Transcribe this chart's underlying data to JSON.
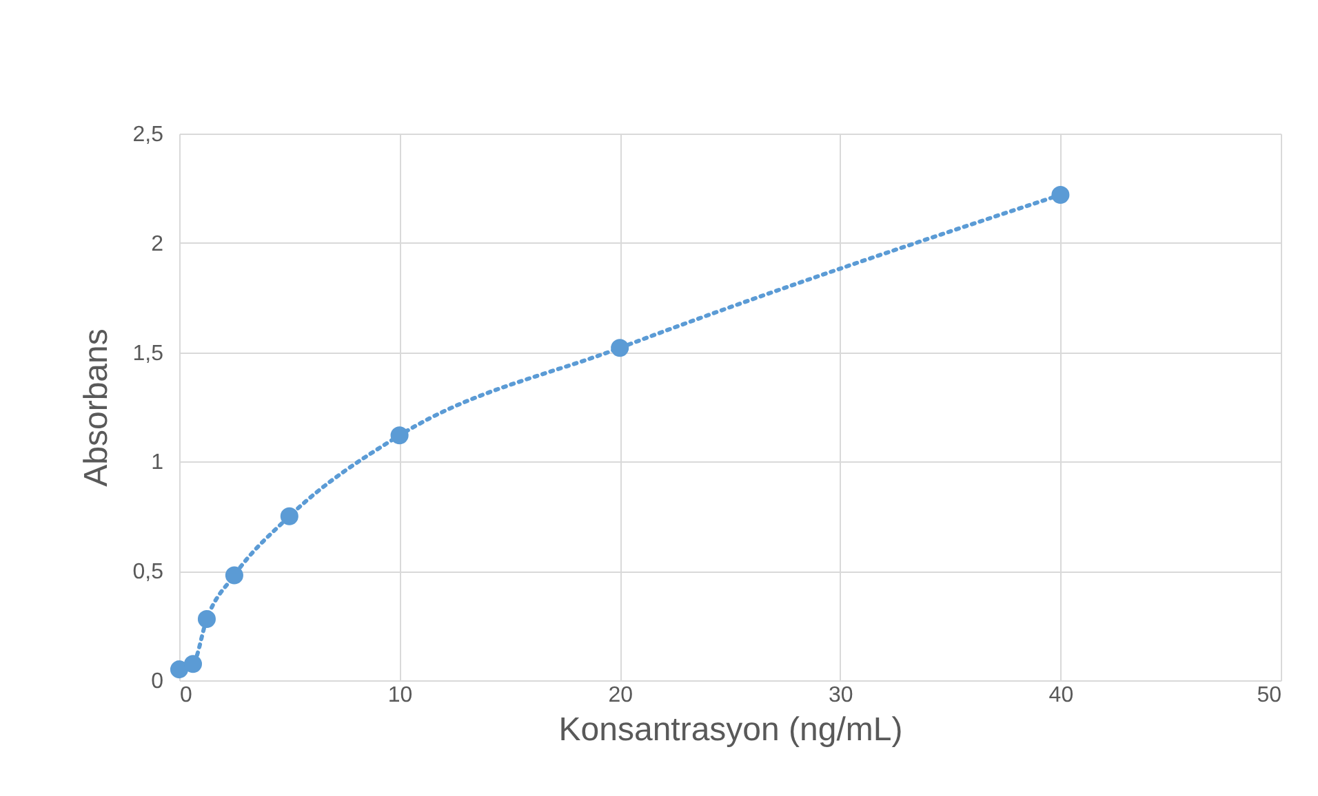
{
  "chart_data": {
    "type": "line",
    "xlabel": "Konsantrasyon (ng/mL)",
    "ylabel": "Absorbans",
    "x": [
      0,
      0.625,
      1.25,
      2.5,
      5,
      10,
      20,
      40
    ],
    "series": [
      {
        "color": "#5b9bd5",
        "values": [
          0.05,
          0.075,
          0.28,
          0.48,
          0.75,
          1.12,
          1.52,
          2.22
        ]
      }
    ],
    "xlim": [
      0,
      50
    ],
    "xticks": [
      0,
      10,
      20,
      30,
      40,
      50
    ],
    "ylim": [
      0,
      2.5
    ],
    "yticks": [
      0,
      {
        "value": 0.5,
        "label": "0,5"
      },
      1,
      {
        "value": 1.5,
        "label": "1,5"
      },
      2,
      {
        "value": 2.5,
        "label": "2,5"
      }
    ],
    "grid": true,
    "marker": "circle",
    "line_style": "dotted"
  }
}
